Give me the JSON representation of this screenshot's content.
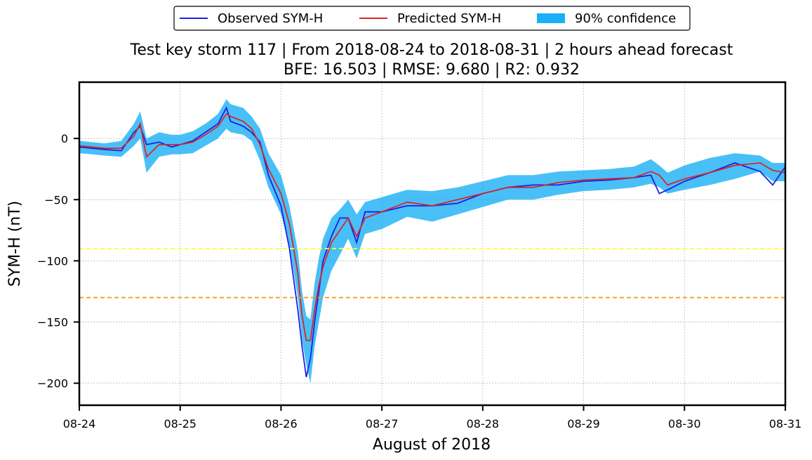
{
  "chart_data": {
    "type": "line",
    "title": "Test key storm 117 | From 2018-08-24 to 2018-08-31 | 2 hours ahead forecast",
    "subtitle": "BFE: 16.503 | RMSE: 9.680 | R2: 0.932",
    "xlabel": "August of 2018",
    "ylabel": "SYM-H (nT)",
    "x_ticks": [
      "08-24",
      "08-25",
      "08-26",
      "08-27",
      "08-28",
      "08-29",
      "08-30",
      "08-31"
    ],
    "y_ticks": [
      "0",
      "−50",
      "−100",
      "−150",
      "−200"
    ],
    "x_range": [
      "2018-08-24",
      "2018-08-31"
    ],
    "ylim": [
      -218,
      46
    ],
    "grid": true,
    "legend_position": "top-center",
    "legend": [
      "Observed SYM-H",
      "Predicted SYM-H",
      "90% confidence"
    ],
    "colors": {
      "observed": "#1f1fe6",
      "predicted": "#d62728",
      "confidence": "#1ab0f5",
      "threshold_yellow": "#ffff33",
      "threshold_orange": "#f0a020"
    },
    "thresholds": [
      -90,
      -130
    ],
    "x": [
      "2018-08-24 00:00",
      "2018-08-24 06:00",
      "2018-08-24 10:00",
      "2018-08-24 13:00",
      "2018-08-24 14:30",
      "2018-08-24 16:00",
      "2018-08-24 19:00",
      "2018-08-24 22:00",
      "2018-08-25 00:00",
      "2018-08-25 03:00",
      "2018-08-25 06:00",
      "2018-08-25 09:00",
      "2018-08-25 11:00",
      "2018-08-25 12:00",
      "2018-08-25 15:00",
      "2018-08-25 17:00",
      "2018-08-25 19:00",
      "2018-08-25 21:00",
      "2018-08-26 00:00",
      "2018-08-26 02:00",
      "2018-08-26 04:00",
      "2018-08-26 05:00",
      "2018-08-26 06:00",
      "2018-08-26 07:00",
      "2018-08-26 08:00",
      "2018-08-26 09:00",
      "2018-08-26 10:00",
      "2018-08-26 12:00",
      "2018-08-26 14:00",
      "2018-08-26 16:00",
      "2018-08-26 18:00",
      "2018-08-26 20:00",
      "2018-08-27 00:00",
      "2018-08-27 06:00",
      "2018-08-27 12:00",
      "2018-08-27 18:00",
      "2018-08-28 00:00",
      "2018-08-28 06:00",
      "2018-08-28 12:00",
      "2018-08-28 18:00",
      "2018-08-29 00:00",
      "2018-08-29 06:00",
      "2018-08-29 12:00",
      "2018-08-29 16:00",
      "2018-08-29 18:00",
      "2018-08-29 20:00",
      "2018-08-30 00:00",
      "2018-08-30 06:00",
      "2018-08-30 12:00",
      "2018-08-30 18:00",
      "2018-08-30 21:00",
      "2018-08-31 00:00"
    ],
    "series": [
      {
        "name": "Observed SYM-H",
        "values": [
          -7,
          -9,
          -10,
          5,
          10,
          -5,
          -3,
          -7,
          -5,
          -2,
          5,
          12,
          25,
          14,
          10,
          5,
          -3,
          -30,
          -55,
          -90,
          -140,
          -170,
          -195,
          -180,
          -150,
          -125,
          -100,
          -80,
          -65,
          -65,
          -85,
          -60,
          -60,
          -55,
          -55,
          -53,
          -45,
          -40,
          -38,
          -38,
          -35,
          -34,
          -32,
          -30,
          -45,
          -42,
          -35,
          -28,
          -20,
          -27,
          -38,
          -23
        ]
      },
      {
        "name": "Predicted SYM-H",
        "values": [
          -6,
          -8,
          -8,
          2,
          12,
          -15,
          -5,
          -5,
          -5,
          -3,
          3,
          10,
          20,
          18,
          14,
          8,
          -5,
          -25,
          -45,
          -70,
          -110,
          -145,
          -165,
          -165,
          -140,
          -120,
          -105,
          -85,
          -75,
          -65,
          -80,
          -65,
          -60,
          -52,
          -55,
          -50,
          -45,
          -40,
          -40,
          -36,
          -34,
          -33,
          -32,
          -27,
          -30,
          -38,
          -33,
          -28,
          -22,
          -20,
          -26,
          -28
        ]
      }
    ],
    "band": {
      "name": "90% confidence",
      "upper": [
        -2,
        -4,
        -2,
        12,
        22,
        0,
        5,
        3,
        3,
        6,
        12,
        20,
        32,
        28,
        25,
        18,
        8,
        -12,
        -30,
        -55,
        -92,
        -125,
        -145,
        -148,
        -118,
        -98,
        -82,
        -65,
        -58,
        -50,
        -62,
        -52,
        -48,
        -42,
        -43,
        -40,
        -35,
        -30,
        -30,
        -27,
        -26,
        -25,
        -23,
        -17,
        -22,
        -28,
        -22,
        -16,
        -12,
        -14,
        -20,
        -20
      ],
      "lower": [
        -12,
        -14,
        -15,
        -6,
        0,
        -28,
        -15,
        -13,
        -13,
        -12,
        -6,
        0,
        8,
        5,
        3,
        -2,
        -18,
        -40,
        -62,
        -88,
        -130,
        -165,
        -185,
        -200,
        -170,
        -150,
        -130,
        -108,
        -95,
        -82,
        -98,
        -78,
        -74,
        -64,
        -68,
        -62,
        -56,
        -50,
        -50,
        -46,
        -43,
        -42,
        -40,
        -37,
        -40,
        -45,
        -42,
        -38,
        -33,
        -27,
        -35,
        -35
      ]
    }
  }
}
